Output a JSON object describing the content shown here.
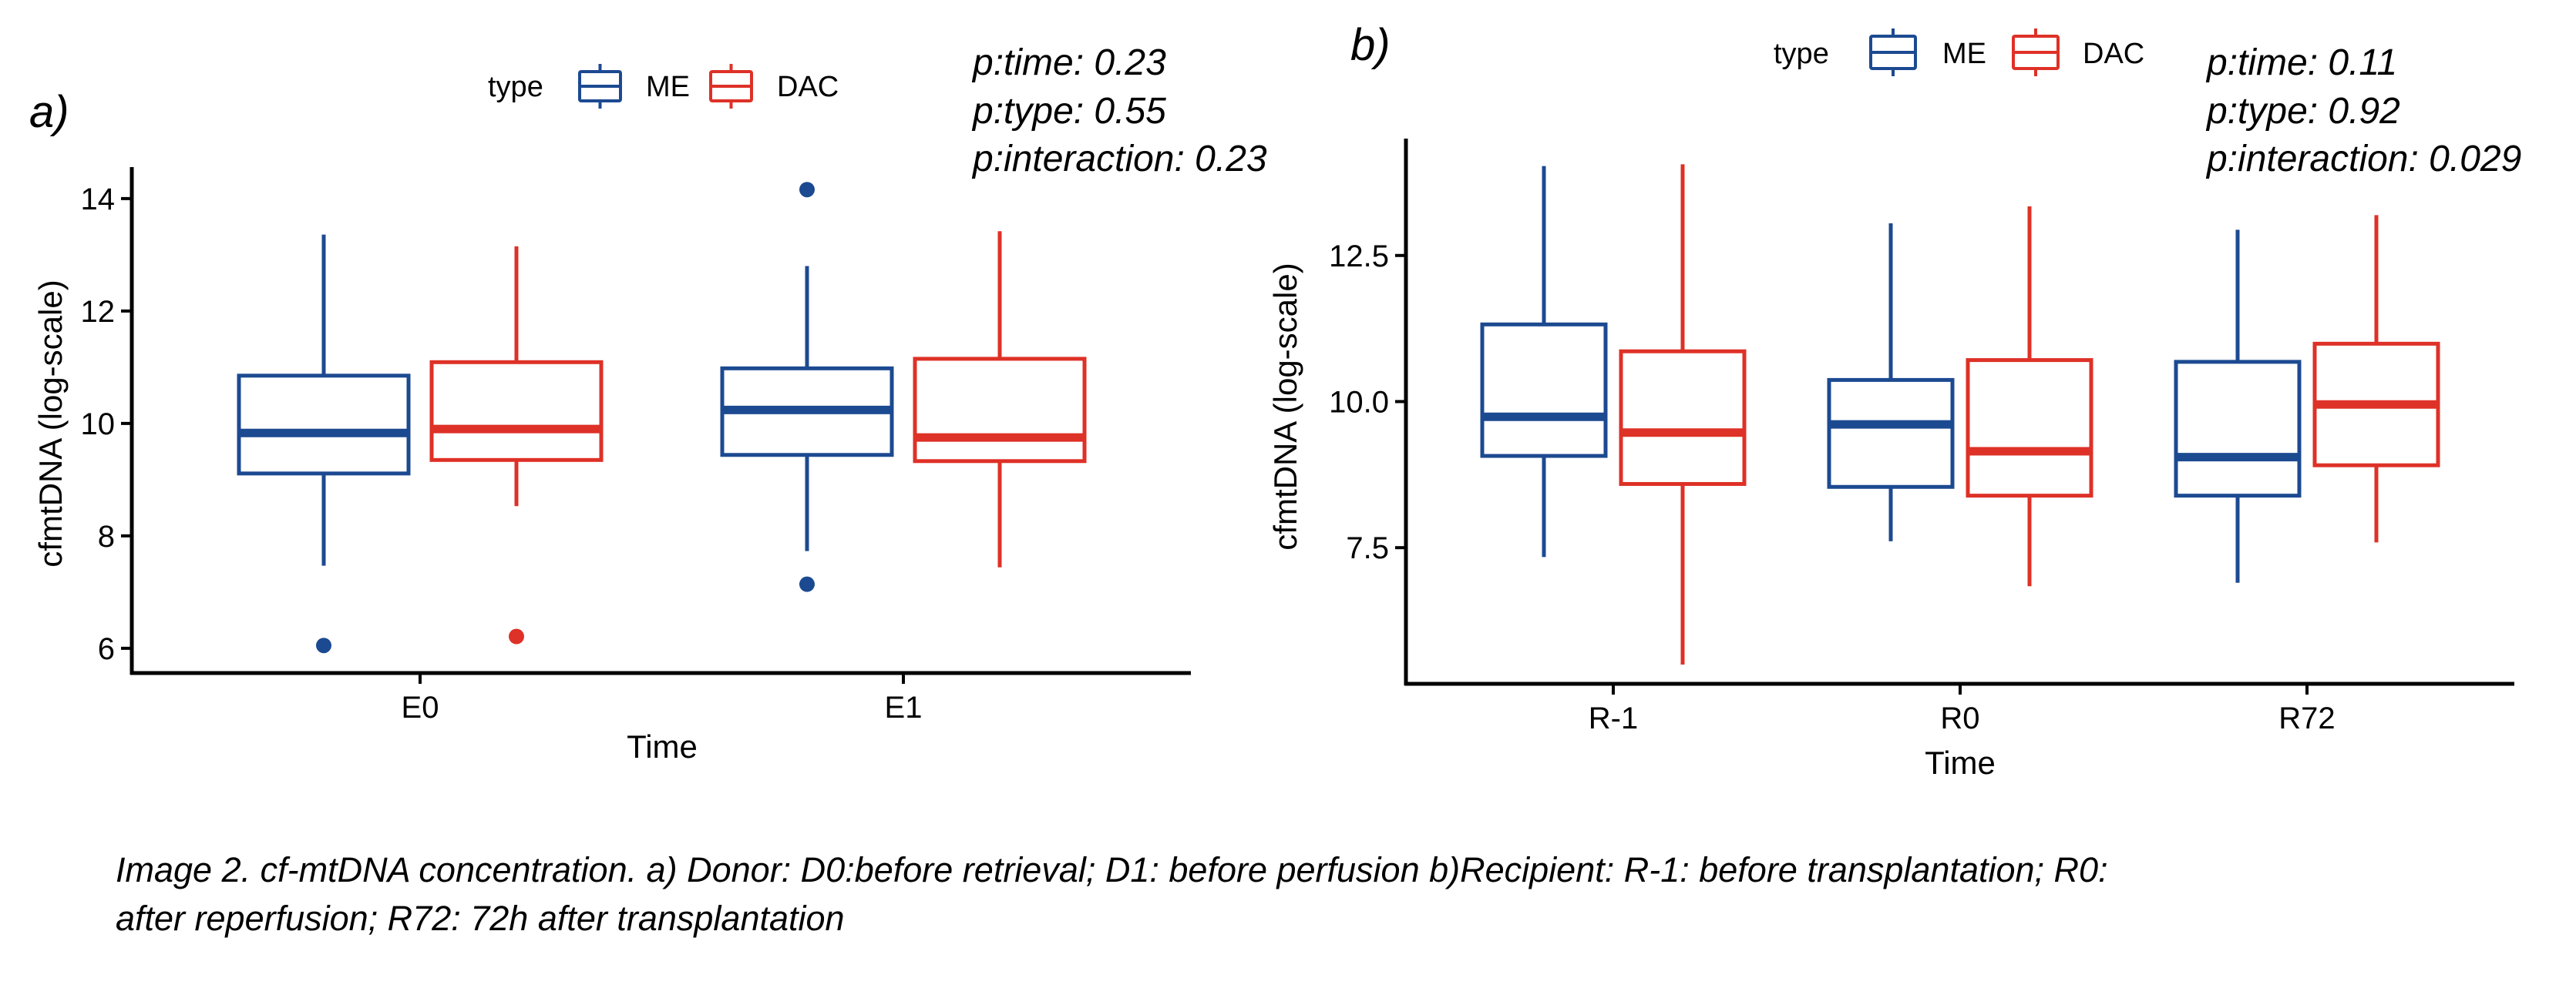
{
  "colors": {
    "ME": "#1c4a91",
    "DAC": "#de3127",
    "axis": "#000000"
  },
  "chart_data": [
    {
      "type": "box",
      "panel_label": "a)",
      "xlabel": "Time",
      "ylabel": "cfmtDNA (log-scale)",
      "ylim": [
        5.56,
        14.56
      ],
      "yticks": [
        6,
        8,
        10,
        12,
        14
      ],
      "ytick_labels": [
        "6",
        "8",
        "10",
        "12",
        "14"
      ],
      "categories": [
        "E0",
        "E1"
      ],
      "legend": {
        "title": "type",
        "entries": [
          "ME",
          "DAC"
        ],
        "position": "top-center"
      },
      "pvalues": [
        "p:time: 0.23",
        "p:type: 0.55",
        "p:interaction: 0.23"
      ],
      "series": [
        {
          "name": "ME",
          "boxes": [
            {
              "category": "E0",
              "whisker_low": 7.47,
              "q1": 9.11,
              "median": 9.83,
              "q3": 10.85,
              "whisker_high": 13.36,
              "outliers": [
                6.05
              ]
            },
            {
              "category": "E1",
              "whisker_low": 7.73,
              "q1": 9.44,
              "median": 10.24,
              "q3": 10.98,
              "whisker_high": 12.8,
              "outliers": [
                14.16,
                7.14
              ]
            }
          ]
        },
        {
          "name": "DAC",
          "boxes": [
            {
              "category": "E0",
              "whisker_low": 8.53,
              "q1": 9.35,
              "median": 9.9,
              "q3": 11.09,
              "whisker_high": 13.15,
              "outliers": [
                6.21
              ]
            },
            {
              "category": "E1",
              "whisker_low": 7.44,
              "q1": 9.33,
              "median": 9.75,
              "q3": 11.15,
              "whisker_high": 13.42,
              "outliers": []
            }
          ]
        }
      ]
    },
    {
      "type": "box",
      "panel_label": "b)",
      "xlabel": "Time",
      "ylabel": "cfmtDNA (log-scale)",
      "ylim": [
        5.17,
        14.5
      ],
      "yticks": [
        7.5,
        10.0,
        12.5
      ],
      "ytick_labels": [
        "7.5",
        "10.0",
        "12.5"
      ],
      "categories": [
        "R-1",
        "R0",
        "R72"
      ],
      "legend": {
        "title": "type",
        "entries": [
          "ME",
          "DAC"
        ],
        "position": "top-center"
      },
      "pvalues": [
        "p:time: 0.11",
        "p:type: 0.92",
        "p:interaction: 0.029"
      ],
      "series": [
        {
          "name": "ME",
          "boxes": [
            {
              "category": "R-1",
              "whisker_low": 7.34,
              "q1": 9.07,
              "median": 9.74,
              "q3": 11.32,
              "whisker_high": 14.03,
              "outliers": []
            },
            {
              "category": "R0",
              "whisker_low": 7.61,
              "q1": 8.54,
              "median": 9.61,
              "q3": 10.37,
              "whisker_high": 13.05,
              "outliers": []
            },
            {
              "category": "R72",
              "whisker_low": 6.9,
              "q1": 8.39,
              "median": 9.05,
              "q3": 10.68,
              "whisker_high": 12.94,
              "outliers": []
            }
          ]
        },
        {
          "name": "DAC",
          "boxes": [
            {
              "category": "R-1",
              "whisker_low": 5.5,
              "q1": 8.59,
              "median": 9.47,
              "q3": 10.86,
              "whisker_high": 14.06,
              "outliers": []
            },
            {
              "category": "R0",
              "whisker_low": 6.84,
              "q1": 8.39,
              "median": 9.15,
              "q3": 10.71,
              "whisker_high": 13.34,
              "outliers": []
            },
            {
              "category": "R72",
              "whisker_low": 7.59,
              "q1": 8.91,
              "median": 9.95,
              "q3": 10.99,
              "whisker_high": 13.19,
              "outliers": []
            }
          ]
        }
      ]
    }
  ],
  "caption": {
    "line1": "Image 2. cf-mtDNA concentration. a) Donor: D0:before retrieval; D1: before perfusion b)Recipient: R-1: before transplantation; R0:",
    "line2": "after reperfusion; R72: 72h after transplantation"
  }
}
